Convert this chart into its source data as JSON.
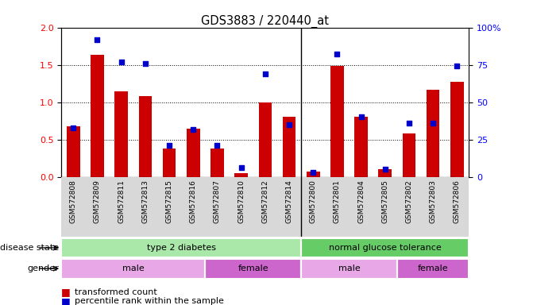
{
  "title": "GDS3883 / 220440_at",
  "samples": [
    "GSM572808",
    "GSM572809",
    "GSM572811",
    "GSM572813",
    "GSM572815",
    "GSM572816",
    "GSM572807",
    "GSM572810",
    "GSM572812",
    "GSM572814",
    "GSM572800",
    "GSM572801",
    "GSM572804",
    "GSM572805",
    "GSM572802",
    "GSM572803",
    "GSM572806"
  ],
  "bar_values": [
    0.68,
    1.63,
    1.15,
    1.08,
    0.38,
    0.65,
    0.38,
    0.05,
    1.0,
    0.8,
    0.07,
    1.48,
    0.8,
    0.1,
    0.58,
    1.17,
    1.27
  ],
  "dot_values_pct": [
    33,
    92,
    77,
    76,
    21,
    32,
    21,
    6,
    69,
    35,
    3,
    82,
    40,
    5,
    36,
    36,
    74
  ],
  "bar_color": "#cc0000",
  "dot_color": "#0000cc",
  "ylim_left": [
    0,
    2
  ],
  "ylim_right": [
    0,
    100
  ],
  "yticks_left": [
    0,
    0.5,
    1.0,
    1.5,
    2.0
  ],
  "yticks_right": [
    0,
    25,
    50,
    75,
    100
  ],
  "disease_state_groups": [
    {
      "label": "type 2 diabetes",
      "start": 0,
      "end": 9,
      "color": "#aae8aa"
    },
    {
      "label": "normal glucose tolerance",
      "start": 10,
      "end": 16,
      "color": "#66cc66"
    }
  ],
  "gender_groups": [
    {
      "label": "male",
      "start": 0,
      "end": 5,
      "color": "#e8a8e8"
    },
    {
      "label": "female",
      "start": 6,
      "end": 9,
      "color": "#cc66cc"
    },
    {
      "label": "male",
      "start": 10,
      "end": 13,
      "color": "#e8a8e8"
    },
    {
      "label": "female",
      "start": 14,
      "end": 16,
      "color": "#cc66cc"
    }
  ],
  "legend_items": [
    {
      "label": "transformed count",
      "color": "#cc0000"
    },
    {
      "label": "percentile rank within the sample",
      "color": "#0000cc"
    }
  ],
  "bar_width": 0.55,
  "divider_after": 9
}
